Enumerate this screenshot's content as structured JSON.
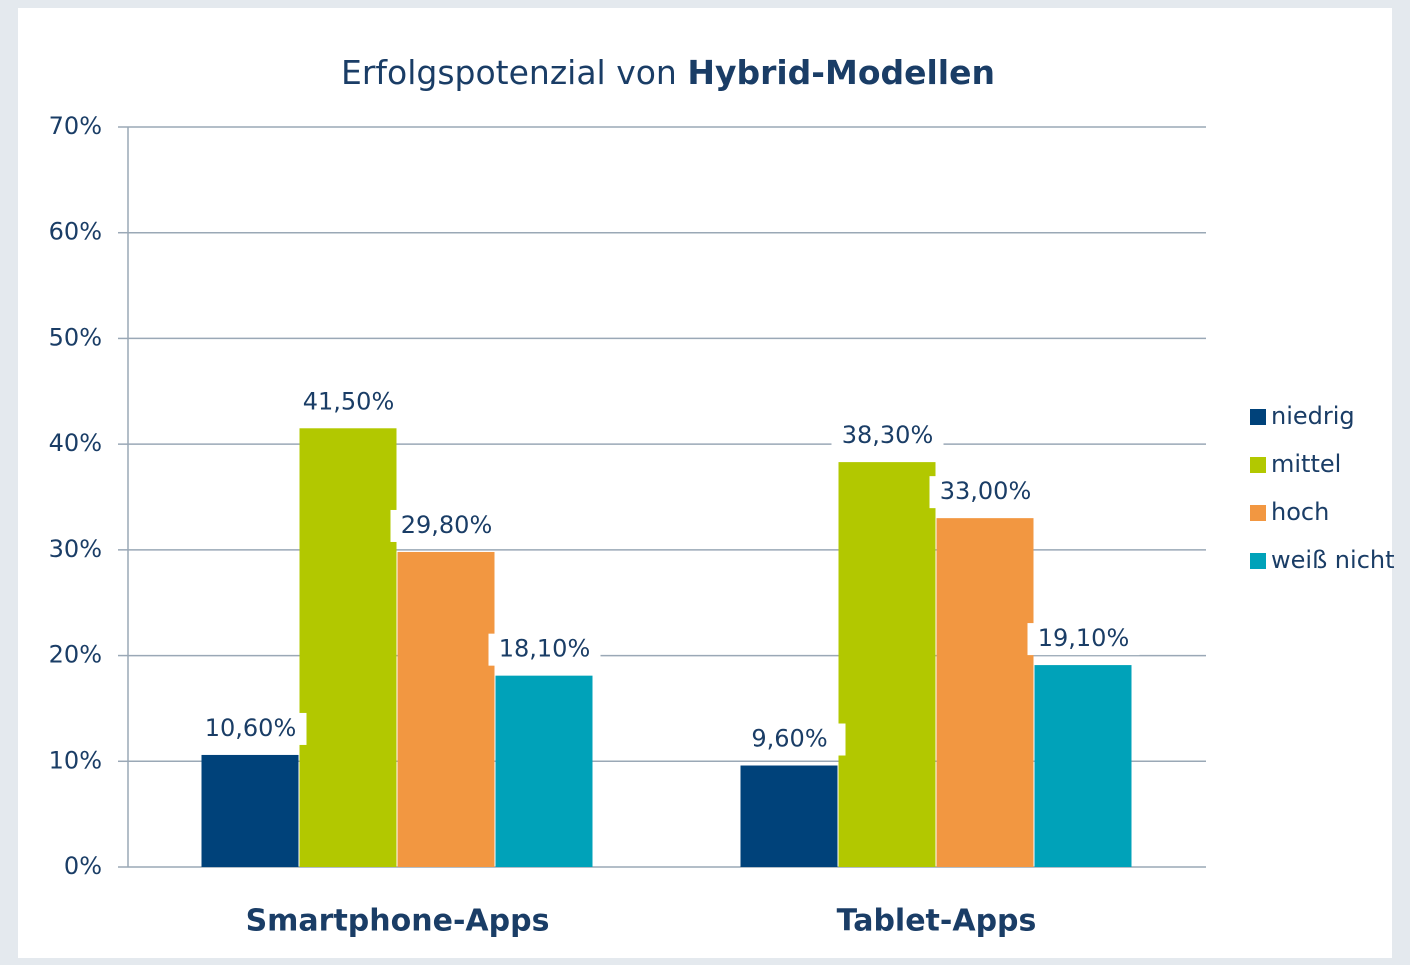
{
  "chart_data": {
    "type": "bar",
    "title": [
      "Erfolgspotenzial von ",
      "Hybrid-Modellen"
    ],
    "categories": [
      "Smartphone-Apps",
      "Tablet-Apps"
    ],
    "series": [
      {
        "name": "niedrig",
        "color": "#00427a",
        "values": [
          10.6,
          9.6
        ],
        "value_labels": [
          "10,60%",
          "9,60%"
        ]
      },
      {
        "name": "mittel",
        "color": "#b2c800",
        "values": [
          41.5,
          38.3
        ],
        "value_labels": [
          "41,50%",
          "38,30%"
        ]
      },
      {
        "name": "hoch",
        "color": "#f29741",
        "values": [
          29.8,
          33.0
        ],
        "value_labels": [
          "29,80%",
          "33,00%"
        ]
      },
      {
        "name": "weiß nicht",
        "color": "#00a2b9",
        "values": [
          18.1,
          19.1
        ],
        "value_labels": [
          "18,10%",
          "19,10%"
        ]
      }
    ],
    "ylim": [
      0,
      70
    ],
    "yticks": [
      {
        "value": 0,
        "label": "0%"
      },
      {
        "value": 10,
        "label": "10%"
      },
      {
        "value": 20,
        "label": "20%"
      },
      {
        "value": 30,
        "label": "30%"
      },
      {
        "value": 40,
        "label": "40%"
      },
      {
        "value": 50,
        "label": "50%"
      },
      {
        "value": 60,
        "label": "60%"
      },
      {
        "value": 70,
        "label": "70%"
      }
    ],
    "grid": true,
    "legend": "right"
  }
}
